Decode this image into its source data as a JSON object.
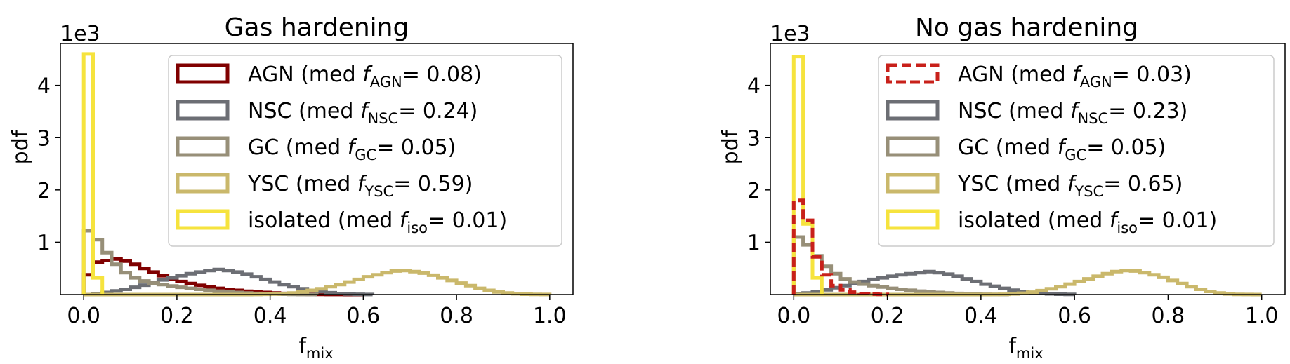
{
  "chart_data": [
    {
      "type": "histogram",
      "title": "Gas hardening",
      "xlabel_main": "f",
      "xlabel_sub": "mix",
      "ylabel": "pdf",
      "y_scale_label": "1e3",
      "y_scale": 1000,
      "xlim": [
        -0.05,
        1.05
      ],
      "ylim": [
        0,
        4800
      ],
      "xticks": [
        "0.0",
        "0.2",
        "0.4",
        "0.6",
        "0.8",
        "1.0"
      ],
      "yticks": [
        "1",
        "2",
        "3",
        "4"
      ],
      "bin_width": 0.02,
      "legend_position": "upper-right",
      "series": [
        {
          "legend_text": "AGN (med ",
          "legend_f": "f",
          "legend_sub": "AGN",
          "legend_value": "= 0.08)",
          "color": "#800000",
          "dashed": false,
          "values": [
            380,
            620,
            650,
            680,
            640,
            580,
            500,
            430,
            360,
            300,
            250,
            210,
            175,
            145,
            120,
            100,
            80,
            65,
            50,
            40,
            30,
            22,
            16,
            10,
            6,
            3,
            2,
            1,
            0,
            0
          ]
        },
        {
          "legend_text": "NSC (med ",
          "legend_f": "f",
          "legend_sub": "NSC",
          "legend_value": "= 0.24)",
          "color": "#6c6e74",
          "dashed": false,
          "values": [
            0,
            20,
            40,
            70,
            100,
            140,
            180,
            230,
            280,
            320,
            360,
            400,
            430,
            460,
            480,
            460,
            430,
            390,
            340,
            290,
            240,
            190,
            150,
            110,
            80,
            55,
            35,
            20,
            10,
            5,
            2
          ]
        },
        {
          "legend_text": "GC (med ",
          "legend_f": "f",
          "legend_sub": "GC",
          "legend_value": "= 0.05)",
          "color": "#978f78",
          "dashed": false,
          "values": [
            1220,
            1050,
            800,
            580,
            420,
            320,
            260,
            220,
            190,
            165,
            140,
            120,
            100,
            82,
            66,
            52,
            40,
            30,
            22,
            16,
            11,
            7,
            4,
            2,
            1
          ]
        },
        {
          "legend_text": "YSC (med ",
          "legend_f": "f",
          "legend_sub": "YSC",
          "legend_value": "= 0.59)",
          "color": "#cab86b",
          "dashed": false,
          "values": [
            0,
            0,
            0,
            0,
            0,
            0,
            0,
            0,
            0,
            0,
            0,
            0,
            0,
            0,
            0,
            0,
            0,
            0,
            2,
            5,
            10,
            18,
            30,
            50,
            80,
            110,
            150,
            190,
            240,
            290,
            340,
            380,
            420,
            450,
            460,
            440,
            410,
            370,
            320,
            270,
            220,
            170,
            120,
            80,
            50,
            30,
            15,
            7,
            3,
            1
          ]
        },
        {
          "legend_text": "isolated (med ",
          "legend_f": "f",
          "legend_sub": "iso",
          "legend_value": "= 0.01)",
          "color": "#f6e33d",
          "dashed": false,
          "values": [
            4600,
            320
          ]
        }
      ]
    },
    {
      "type": "histogram",
      "title": "No gas hardening",
      "xlabel_main": "f",
      "xlabel_sub": "mix",
      "ylabel": "pdf",
      "y_scale_label": "1e3",
      "y_scale": 1000,
      "xlim": [
        -0.05,
        1.05
      ],
      "ylim": [
        0,
        4800
      ],
      "xticks": [
        "0.0",
        "0.2",
        "0.4",
        "0.6",
        "0.8",
        "1.0"
      ],
      "yticks": [
        "1",
        "2",
        "3",
        "4"
      ],
      "bin_width": 0.02,
      "legend_position": "upper-right",
      "series": [
        {
          "legend_text": "NSC (med ",
          "legend_f": "f",
          "legend_sub": "NSC",
          "legend_value": "= 0.23)",
          "color": "#6c6e74",
          "dashed": false,
          "values": [
            10,
            30,
            60,
            90,
            130,
            170,
            210,
            250,
            290,
            320,
            350,
            380,
            400,
            420,
            440,
            420,
            390,
            350,
            300,
            250,
            200,
            160,
            120,
            85,
            60,
            40,
            25,
            14,
            7,
            3
          ]
        },
        {
          "legend_text": "GC (med ",
          "legend_f": "f",
          "legend_sub": "GC",
          "legend_value": "= 0.05)",
          "color": "#978f78",
          "dashed": false,
          "values": [
            1100,
            950,
            740,
            540,
            400,
            300,
            240,
            200,
            170,
            145,
            120,
            100,
            82,
            66,
            52,
            40,
            30,
            22,
            15,
            10,
            6,
            3,
            1
          ]
        },
        {
          "legend_text": "YSC (med ",
          "legend_f": "f",
          "legend_sub": "YSC",
          "legend_value": "= 0.65)",
          "color": "#cab86b",
          "dashed": false,
          "values": [
            0,
            0,
            0,
            0,
            0,
            0,
            0,
            0,
            0,
            0,
            0,
            0,
            0,
            0,
            0,
            0,
            0,
            0,
            0,
            0,
            0,
            2,
            5,
            12,
            25,
            45,
            75,
            110,
            150,
            200,
            250,
            300,
            350,
            400,
            440,
            460,
            450,
            420,
            380,
            330,
            270,
            210,
            150,
            100,
            60,
            30,
            12,
            4,
            1,
            0
          ]
        },
        {
          "legend_text": "isolated (med ",
          "legend_f": "f",
          "legend_sub": "iso",
          "legend_value": "= 0.01)",
          "color": "#f6e33d",
          "dashed": false,
          "values": [
            4550,
            1350,
            320
          ]
        },
        {
          "legend_text": "AGN (med ",
          "legend_f": "f",
          "legend_sub": "AGN",
          "legend_value": "= 0.03)",
          "color": "#c8201a",
          "dashed": true,
          "values": [
            1800,
            1420,
            720,
            380,
            170,
            90,
            45,
            20,
            8,
            3
          ]
        }
      ],
      "legend_order": [
        4,
        0,
        1,
        2,
        3
      ]
    }
  ]
}
